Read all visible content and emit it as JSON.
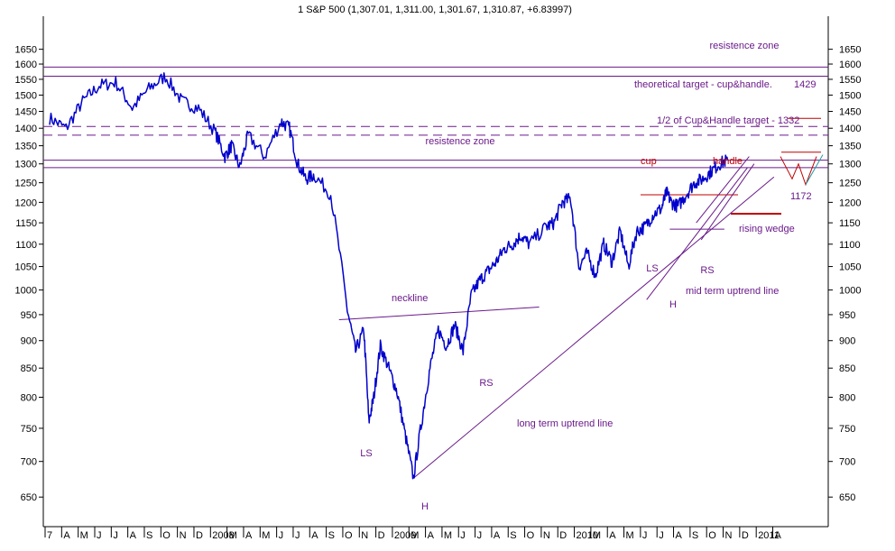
{
  "chart_data": {
    "type": "line",
    "title": "1 S&P 500 (1,307.01, 1,311.00, 1,301.67, 1,310.87, +6.83997)",
    "xlabel": "",
    "ylabel": "",
    "ylim": [
      620,
      1680
    ],
    "log_scale": true,
    "grid": false,
    "y_ticks": [
      650,
      700,
      750,
      800,
      850,
      900,
      950,
      1000,
      1050,
      1100,
      1150,
      1200,
      1250,
      1300,
      1350,
      1400,
      1450,
      1500,
      1550,
      1600,
      1650
    ],
    "x_tick_labels": [
      "7",
      "A",
      "M",
      "J",
      "J",
      "A",
      "S",
      "O",
      "N",
      "D",
      "2008",
      "M",
      "A",
      "M",
      "J",
      "J",
      "A",
      "S",
      "O",
      "N",
      "D",
      "2009",
      "M",
      "A",
      "M",
      "J",
      "J",
      "A",
      "S",
      "O",
      "N",
      "D",
      "2010",
      "M",
      "A",
      "M",
      "J",
      "J",
      "A",
      "S",
      "O",
      "N",
      "D",
      "2011",
      "A"
    ],
    "series": [
      {
        "color": "#0000cc",
        "x": [
          0,
          1,
          2,
          3,
          4,
          5,
          6,
          7,
          8,
          9,
          10,
          10.6,
          11,
          11.5,
          12,
          13,
          14,
          14.5,
          15,
          15.5,
          16,
          17,
          18,
          18.5,
          19,
          19.3,
          19.6,
          20,
          20.5,
          21,
          21.5,
          22,
          22.5,
          23,
          23.5,
          24,
          24.5,
          25,
          25.5,
          26,
          26.5,
          27,
          27.5,
          28,
          28.5,
          29,
          30,
          30.5,
          31,
          31.5,
          32,
          32.5,
          33,
          33.5,
          34,
          34.5,
          35,
          35.5,
          36,
          36.5,
          37,
          37.3,
          37.6,
          38,
          38.5,
          39,
          39.5,
          40,
          40.5,
          41,
          41.5,
          42,
          42.5,
          43
        ],
        "values": [
          1430,
          1400,
          1480,
          1530,
          1540,
          1460,
          1520,
          1560,
          1480,
          1460,
          1390,
          1320,
          1350,
          1290,
          1380,
          1320,
          1420,
          1400,
          1300,
          1260,
          1270,
          1220,
          960,
          880,
          920,
          760,
          800,
          890,
          850,
          810,
          740,
          676,
          760,
          850,
          920,
          890,
          930,
          880,
          990,
          1020,
          1040,
          1060,
          1090,
          1100,
          1120,
          1100,
          1140,
          1150,
          1200,
          1210,
          1050,
          1080,
          1030,
          1100,
          1060,
          1130,
          1050,
          1130,
          1140,
          1170,
          1185,
          1225,
          1200,
          1190,
          1220,
          1250,
          1260,
          1280,
          1300,
          1311,
          null,
          null,
          null,
          null
        ]
      }
    ],
    "annotations": {
      "resistance_zone_top": "resistence zone",
      "resistance_zone_mid": "resistence zone",
      "cup_handle_target": "theoretical target - cup&handle.",
      "cup_handle_target_value": "1429",
      "half_target": "1/2 of Cup&Handle target - 1332",
      "cup": "cup",
      "handle": "handle",
      "level_1172": "1172",
      "rising_wedge": "rising wedge",
      "neckline": "neckline",
      "ls_left": "LS",
      "h_left": "H",
      "rs_left": "RS",
      "ls_right": "LS",
      "h_right": "H",
      "rs_right": "RS",
      "long_term": "long term uptrend line",
      "mid_term": "mid term uptrend line"
    },
    "lines": {
      "resistance_top": [
        1590,
        1560
      ],
      "resistance_mid": [
        1310,
        1290
      ],
      "dashed_targets": [
        1405,
        1380
      ],
      "target_1429": 1429,
      "target_1332": 1332,
      "level_1172": 1172,
      "cup_rim": 1219,
      "neckline": [
        [
          17.5,
          940
        ],
        [
          29.6,
          965
        ]
      ],
      "long_term_uptrend": [
        [
          22,
          676
        ],
        [
          43.8,
          1265
        ]
      ],
      "mid_term_uptrend": [
        [
          36.1,
          980
        ],
        [
          42.2,
          1290
        ]
      ]
    }
  }
}
